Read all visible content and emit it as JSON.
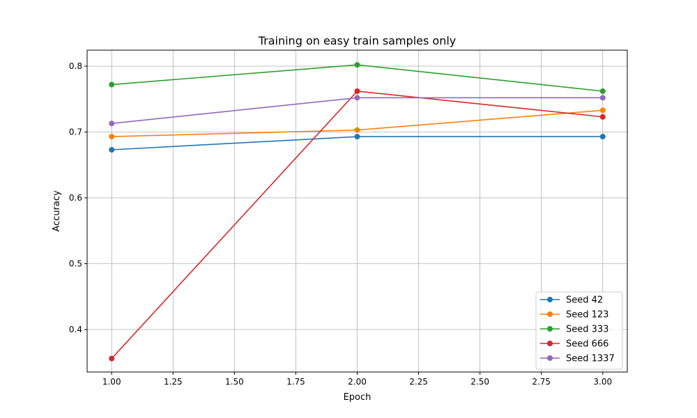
{
  "chart_data": {
    "type": "line",
    "title": "Training on easy train samples only",
    "xlabel": "Epoch",
    "ylabel": "Accuracy",
    "xlim": [
      0.9,
      3.1
    ],
    "ylim": [
      0.3355,
      0.8243
    ],
    "grid": true,
    "legend_position": "lower-right",
    "x": [
      1.0,
      2.0,
      3.0
    ],
    "xticks": [
      1.0,
      1.25,
      1.5,
      1.75,
      2.0,
      2.25,
      2.5,
      2.75,
      3.0
    ],
    "xtick_labels": [
      "1.00",
      "1.25",
      "1.50",
      "1.75",
      "2.00",
      "2.25",
      "2.50",
      "2.75",
      "3.00"
    ],
    "yticks": [
      0.4,
      0.5,
      0.6,
      0.7,
      0.8
    ],
    "ytick_labels": [
      "0.4",
      "0.5",
      "0.6",
      "0.7",
      "0.8"
    ],
    "series": [
      {
        "name": "Seed 42",
        "color": "#1f77b4",
        "values": [
          0.673,
          0.693,
          0.693
        ]
      },
      {
        "name": "Seed 123",
        "color": "#ff7f0e",
        "values": [
          0.693,
          0.703,
          0.733
        ]
      },
      {
        "name": "Seed 333",
        "color": "#2ca02c",
        "values": [
          0.772,
          0.802,
          0.762
        ]
      },
      {
        "name": "Seed 666",
        "color": "#d62728",
        "values": [
          0.356,
          0.762,
          0.723
        ]
      },
      {
        "name": "Seed 1337",
        "color": "#9467bd",
        "values": [
          0.713,
          0.752,
          0.752
        ]
      }
    ]
  }
}
